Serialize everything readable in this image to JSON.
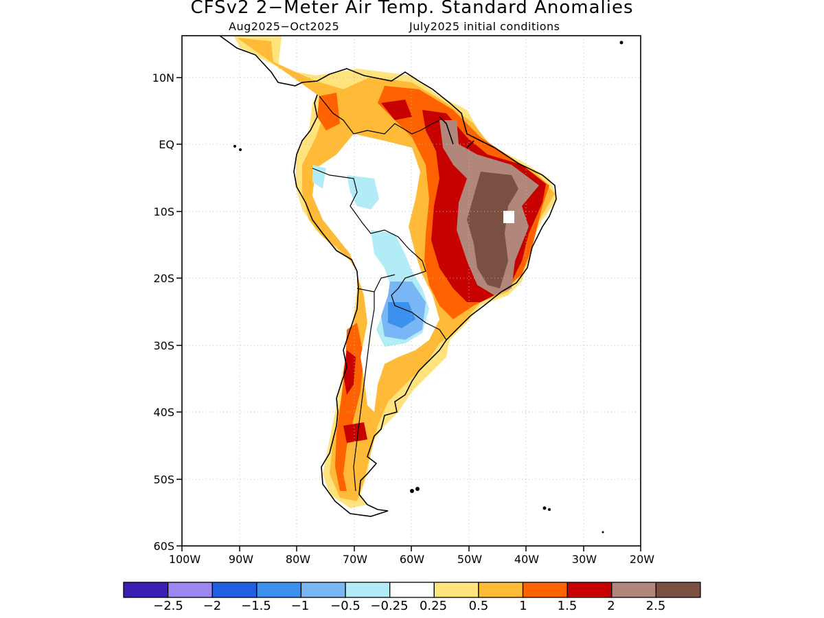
{
  "title": "CFSv2 2−Meter Air Temp. Standard Anomalies",
  "subtitle_left": "Aug2025−Oct2025",
  "subtitle_right": "July2025 initial conditions",
  "axes": {
    "lat_labels": [
      "10N",
      "EQ",
      "10S",
      "20S",
      "30S",
      "40S",
      "50S",
      "60S"
    ],
    "lon_labels": [
      "100W",
      "90W",
      "80W",
      "70W",
      "60W",
      "50W",
      "40W",
      "30W",
      "20W"
    ],
    "lat_range": [
      -60,
      16
    ],
    "lon_range": [
      -100,
      -20
    ],
    "grid": "dotted"
  },
  "colorbar": {
    "labels": [
      "−2.5",
      "−2",
      "−1.5",
      "−1",
      "−0.5",
      "−0.25",
      "0.25",
      "0.5",
      "1",
      "1.5",
      "2",
      "2.5"
    ],
    "colors": [
      "#3b1fb5",
      "#9b86f2",
      "#1f5fe0",
      "#3d91ee",
      "#78b6f6",
      "#b1ecf7",
      "#ffffff",
      "#ffe37d",
      "#ffbb37",
      "#ff6200",
      "#c70000",
      "#b0877a",
      "#7a5043"
    ]
  },
  "icons": {
    "colorbar": "colorbar-icon",
    "map": "south-america-map-icon"
  }
}
